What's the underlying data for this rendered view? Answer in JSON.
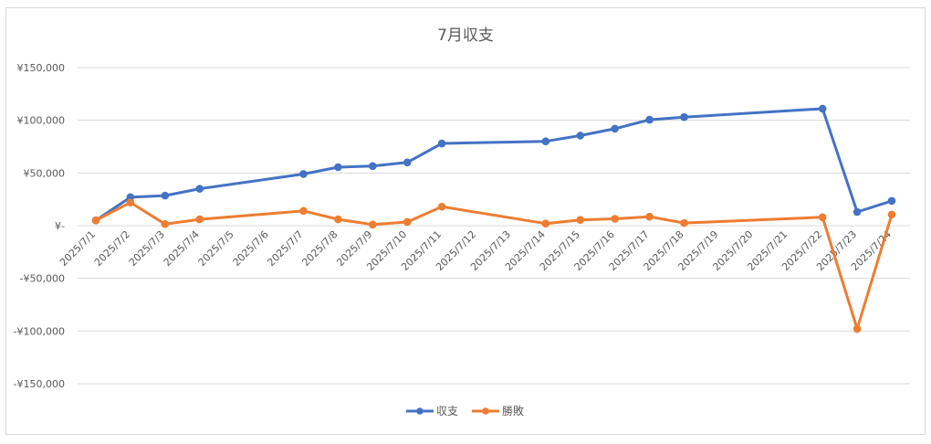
{
  "chart_data": {
    "type": "line",
    "title": "7月収支",
    "categories": [
      "2025/7/1",
      "2025/7/2",
      "2025/7/3",
      "2025/7/4",
      "2025/7/5",
      "2025/7/6",
      "2025/7/7",
      "2025/7/8",
      "2025/7/9",
      "2025/7/10",
      "2025/7/11",
      "2025/7/12",
      "2025/7/13",
      "2025/7/14",
      "2025/7/15",
      "2025/7/16",
      "2025/7/17",
      "2025/7/18",
      "2025/7/19",
      "2025/7/20",
      "2025/7/21",
      "2025/7/22",
      "2025/7/23",
      "2025/7/24"
    ],
    "series": [
      {
        "name": "収支",
        "color": "#4472C4",
        "values": [
          5000,
          27000,
          28500,
          35000,
          null,
          null,
          49000,
          55500,
          56500,
          60000,
          78000,
          null,
          null,
          80000,
          85500,
          92000,
          100500,
          103000,
          null,
          null,
          null,
          111000,
          13000,
          23500
        ]
      },
      {
        "name": "勝敗",
        "color": "#ED7D31",
        "values": [
          5000,
          22000,
          1500,
          6000,
          null,
          null,
          14000,
          6000,
          1000,
          3500,
          18000,
          null,
          null,
          2000,
          5500,
          6500,
          8500,
          2500,
          null,
          null,
          null,
          8000,
          -98000,
          10500
        ]
      }
    ],
    "ylim": [
      -150000,
      150000
    ],
    "yticks": [
      150000,
      100000,
      50000,
      0,
      -50000,
      -100000,
      -150000
    ],
    "ytick_labels": [
      "¥150,000",
      "¥100,000",
      "¥50,000",
      "¥-",
      "-¥50,000",
      "-¥100,000",
      "-¥150,000"
    ],
    "grid": true,
    "legend_position": "bottom"
  }
}
